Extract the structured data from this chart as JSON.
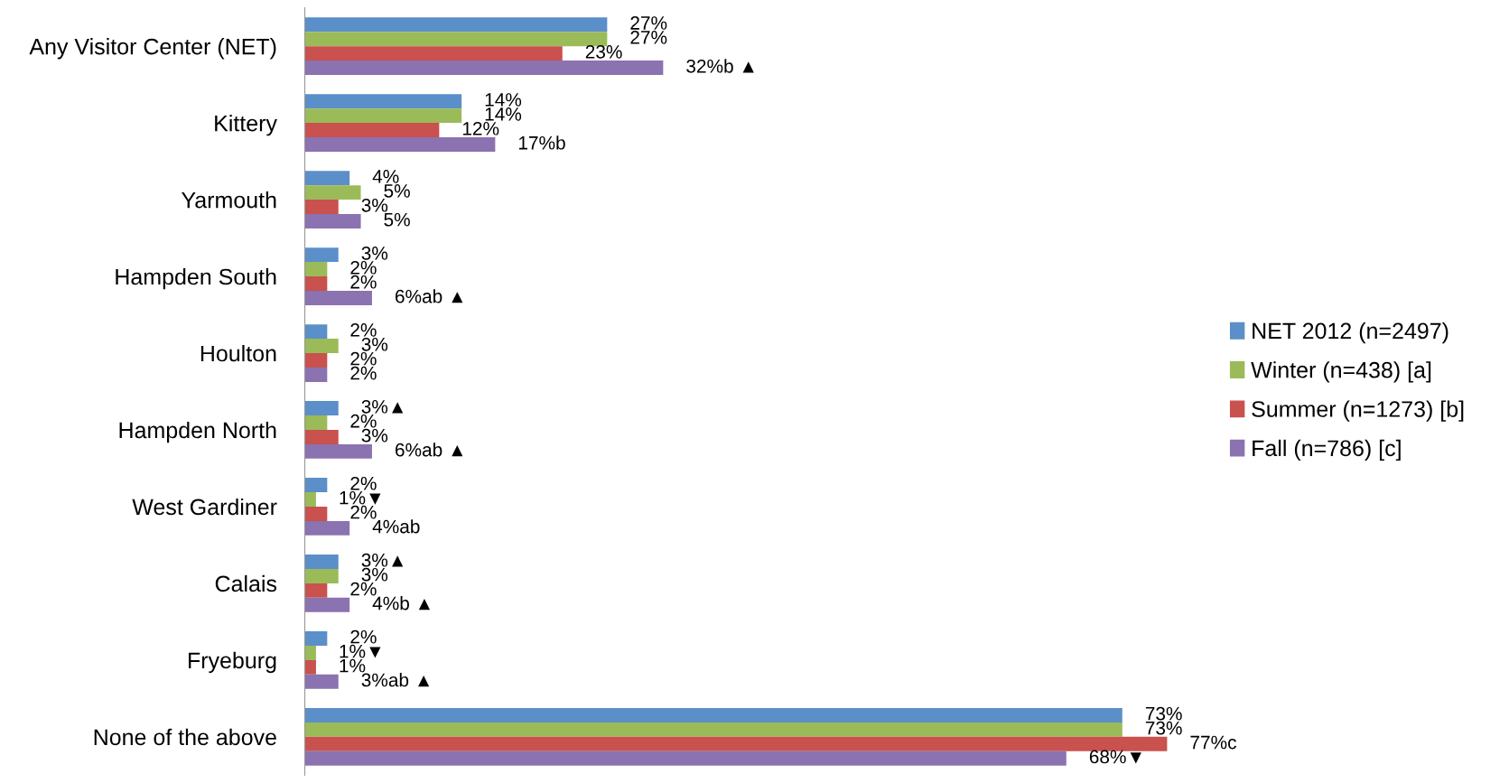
{
  "chart_data": {
    "type": "bar",
    "orientation": "horizontal",
    "categories": [
      "Any Visitor Center (NET)",
      "Kittery",
      "Yarmouth",
      "Hampden South",
      "Houlton",
      "Hampden North",
      "West Gardiner",
      "Calais",
      "Fryeburg",
      "None of the above"
    ],
    "series": [
      {
        "name": "NET 2012 (n=2497)",
        "color": "#5b8fc9",
        "values": [
          27,
          14,
          4,
          3,
          2,
          3,
          2,
          3,
          2,
          73
        ],
        "value_labels": [
          "27%",
          "14%",
          "4%",
          "3%",
          "2%",
          "3%▲",
          "2%",
          "3%▲",
          "2%",
          "73%"
        ]
      },
      {
        "name": "Winter (n=438) [a]",
        "color": "#9bbb59",
        "values": [
          27,
          14,
          5,
          2,
          3,
          2,
          1,
          3,
          1,
          73
        ],
        "value_labels": [
          "27%",
          "14%",
          "5%",
          "2%",
          "3%",
          "2%",
          "1%▼",
          "3%",
          "1%▼",
          "73%"
        ]
      },
      {
        "name": "Summer (n=1273) [b]",
        "color": "#c9514e",
        "values": [
          23,
          12,
          3,
          2,
          2,
          3,
          2,
          2,
          1,
          77
        ],
        "value_labels": [
          "23%",
          "12%",
          "3%",
          "2%",
          "2%",
          "3%",
          "2%",
          "2%",
          "1%",
          "77%c"
        ]
      },
      {
        "name": "Fall (n=786) [c]",
        "color": "#8b72b0",
        "values": [
          32,
          17,
          5,
          6,
          2,
          6,
          4,
          4,
          3,
          68
        ],
        "value_labels": [
          "32%b ▲",
          "17%b",
          "5%",
          "6%ab ▲",
          "2%",
          "6%ab ▲",
          "4%ab",
          "4%b ▲",
          "3%ab ▲",
          "68%▼"
        ]
      }
    ],
    "legend": "right",
    "grid": false
  }
}
